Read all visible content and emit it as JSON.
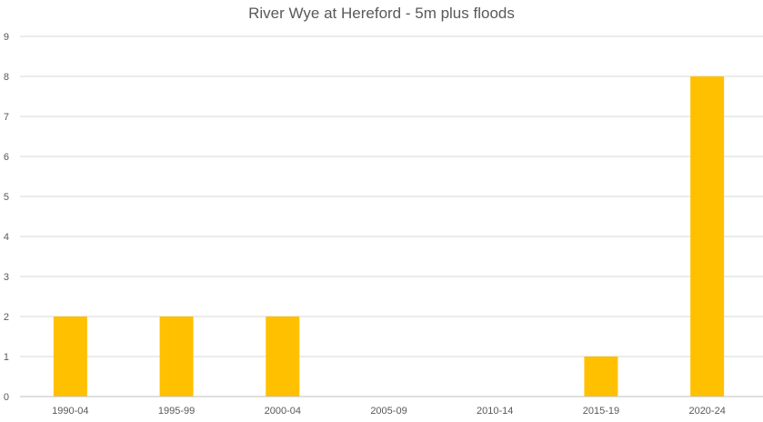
{
  "chart_data": {
    "type": "bar",
    "title": "River Wye at Hereford - 5m plus floods",
    "xlabel": "",
    "ylabel": "",
    "categories": [
      "1990-04",
      "1995-99",
      "2000-04",
      "2005-09",
      "2010-14",
      "2015-19",
      "2020-24"
    ],
    "values": [
      2,
      2,
      2,
      0,
      0,
      1,
      8
    ],
    "ylim": [
      0,
      9
    ],
    "yticks": [
      0,
      1,
      2,
      3,
      4,
      5,
      6,
      7,
      8,
      9
    ],
    "grid": true,
    "legend": "none",
    "colors": {
      "bar": "#FFC000",
      "grid": "#D9D9D9",
      "axis": "#BFBFBF",
      "text": "#595959"
    }
  }
}
